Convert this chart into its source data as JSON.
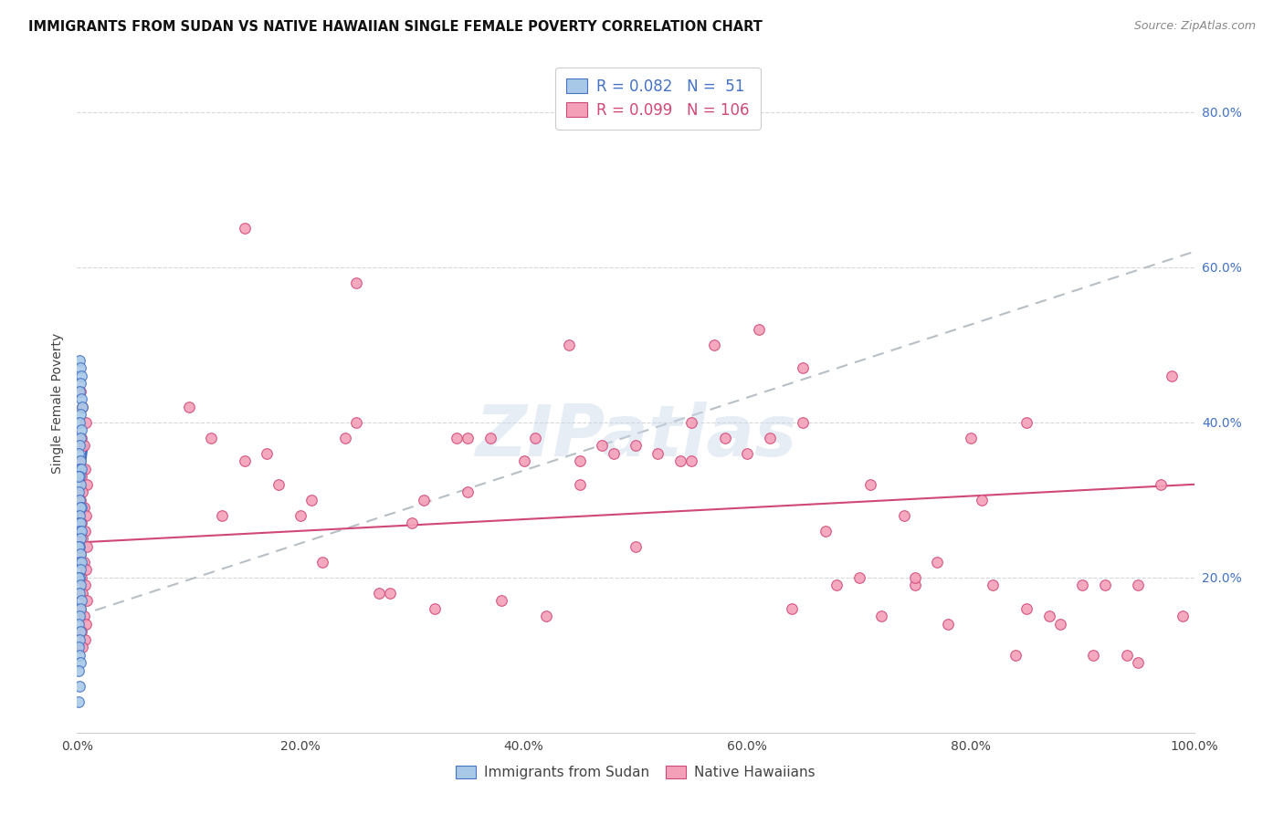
{
  "title": "IMMIGRANTS FROM SUDAN VS NATIVE HAWAIIAN SINGLE FEMALE POVERTY CORRELATION CHART",
  "source": "Source: ZipAtlas.com",
  "ylabel": "Single Female Poverty",
  "color_blue": "#a8c8e8",
  "color_pink": "#f4a0b8",
  "color_blue_dark": "#4472C4",
  "color_pink_dark": "#d04878",
  "trend_line_blue_color": "#4472C4",
  "trend_line_pink_color": "#d04878",
  "trend_dashed_color": "#b0b8c0",
  "background_color": "#ffffff",
  "grid_color": "#d8d8d8",
  "sudan_x": [
    0.002,
    0.003,
    0.004,
    0.003,
    0.002,
    0.004,
    0.005,
    0.003,
    0.002,
    0.004,
    0.003,
    0.002,
    0.001,
    0.003,
    0.002,
    0.004,
    0.002,
    0.003,
    0.001,
    0.002,
    0.004,
    0.003,
    0.002,
    0.001,
    0.003,
    0.002,
    0.004,
    0.003,
    0.002,
    0.001,
    0.003,
    0.002,
    0.004,
    0.003,
    0.002,
    0.001,
    0.003,
    0.002,
    0.004,
    0.003,
    0.002,
    0.001,
    0.003,
    0.002,
    0.001,
    0.002,
    0.003,
    0.001,
    0.002,
    0.001,
    0.001
  ],
  "sudan_y": [
    0.48,
    0.47,
    0.46,
    0.45,
    0.44,
    0.43,
    0.42,
    0.41,
    0.4,
    0.39,
    0.38,
    0.37,
    0.36,
    0.35,
    0.34,
    0.34,
    0.33,
    0.32,
    0.31,
    0.3,
    0.29,
    0.29,
    0.28,
    0.27,
    0.27,
    0.26,
    0.26,
    0.25,
    0.24,
    0.24,
    0.23,
    0.22,
    0.22,
    0.21,
    0.2,
    0.2,
    0.19,
    0.18,
    0.17,
    0.16,
    0.15,
    0.14,
    0.13,
    0.12,
    0.11,
    0.1,
    0.09,
    0.08,
    0.06,
    0.04,
    0.33
  ],
  "hawaii_x": [
    0.003,
    0.005,
    0.008,
    0.004,
    0.006,
    0.002,
    0.007,
    0.004,
    0.009,
    0.005,
    0.003,
    0.006,
    0.008,
    0.004,
    0.007,
    0.005,
    0.009,
    0.003,
    0.006,
    0.008,
    0.004,
    0.007,
    0.005,
    0.009,
    0.003,
    0.006,
    0.008,
    0.004,
    0.007,
    0.005,
    0.12,
    0.15,
    0.18,
    0.2,
    0.22,
    0.25,
    0.28,
    0.3,
    0.32,
    0.35,
    0.38,
    0.4,
    0.42,
    0.45,
    0.48,
    0.5,
    0.52,
    0.55,
    0.58,
    0.6,
    0.62,
    0.65,
    0.68,
    0.7,
    0.72,
    0.75,
    0.78,
    0.8,
    0.82,
    0.85,
    0.88,
    0.9,
    0.92,
    0.95,
    0.98,
    0.99,
    0.1,
    0.13,
    0.17,
    0.21,
    0.24,
    0.27,
    0.31,
    0.34,
    0.37,
    0.41,
    0.44,
    0.47,
    0.5,
    0.54,
    0.57,
    0.61,
    0.64,
    0.67,
    0.71,
    0.74,
    0.77,
    0.81,
    0.84,
    0.87,
    0.91,
    0.94,
    0.97,
    0.15,
    0.25,
    0.35,
    0.45,
    0.55,
    0.65,
    0.75,
    0.85,
    0.95
  ],
  "hawaii_y": [
    0.44,
    0.42,
    0.4,
    0.38,
    0.37,
    0.35,
    0.34,
    0.33,
    0.32,
    0.31,
    0.3,
    0.29,
    0.28,
    0.27,
    0.26,
    0.25,
    0.24,
    0.23,
    0.22,
    0.21,
    0.2,
    0.19,
    0.18,
    0.17,
    0.16,
    0.15,
    0.14,
    0.13,
    0.12,
    0.11,
    0.38,
    0.35,
    0.32,
    0.28,
    0.22,
    0.4,
    0.18,
    0.27,
    0.16,
    0.31,
    0.17,
    0.35,
    0.15,
    0.32,
    0.36,
    0.37,
    0.36,
    0.35,
    0.38,
    0.36,
    0.38,
    0.4,
    0.19,
    0.2,
    0.15,
    0.19,
    0.14,
    0.38,
    0.19,
    0.16,
    0.14,
    0.19,
    0.19,
    0.19,
    0.46,
    0.15,
    0.42,
    0.28,
    0.36,
    0.3,
    0.38,
    0.18,
    0.3,
    0.38,
    0.38,
    0.38,
    0.5,
    0.37,
    0.24,
    0.35,
    0.5,
    0.52,
    0.16,
    0.26,
    0.32,
    0.28,
    0.22,
    0.3,
    0.1,
    0.15,
    0.1,
    0.1,
    0.32,
    0.65,
    0.58,
    0.38,
    0.35,
    0.4,
    0.47,
    0.2,
    0.4,
    0.09
  ],
  "blue_trend_x": [
    0.0,
    0.009
  ],
  "blue_trend_y": [
    0.27,
    0.37
  ],
  "pink_trend_x": [
    0.0,
    1.0
  ],
  "pink_trend_y": [
    0.245,
    0.32
  ],
  "dash_trend_x": [
    0.0,
    1.0
  ],
  "dash_trend_y": [
    0.15,
    0.62
  ],
  "xlim": [
    0.0,
    1.0
  ],
  "ylim": [
    0.0,
    0.85
  ],
  "x_ticks": [
    0.0,
    0.2,
    0.4,
    0.6,
    0.8,
    1.0
  ],
  "x_tick_labels": [
    "0.0%",
    "20.0%",
    "40.0%",
    "60.0%",
    "80.0%",
    "100.0%"
  ],
  "y_ticks_right": [
    0.2,
    0.4,
    0.6,
    0.8
  ],
  "y_tick_labels_right": [
    "20.0%",
    "40.0%",
    "60.0%",
    "80.0%"
  ]
}
